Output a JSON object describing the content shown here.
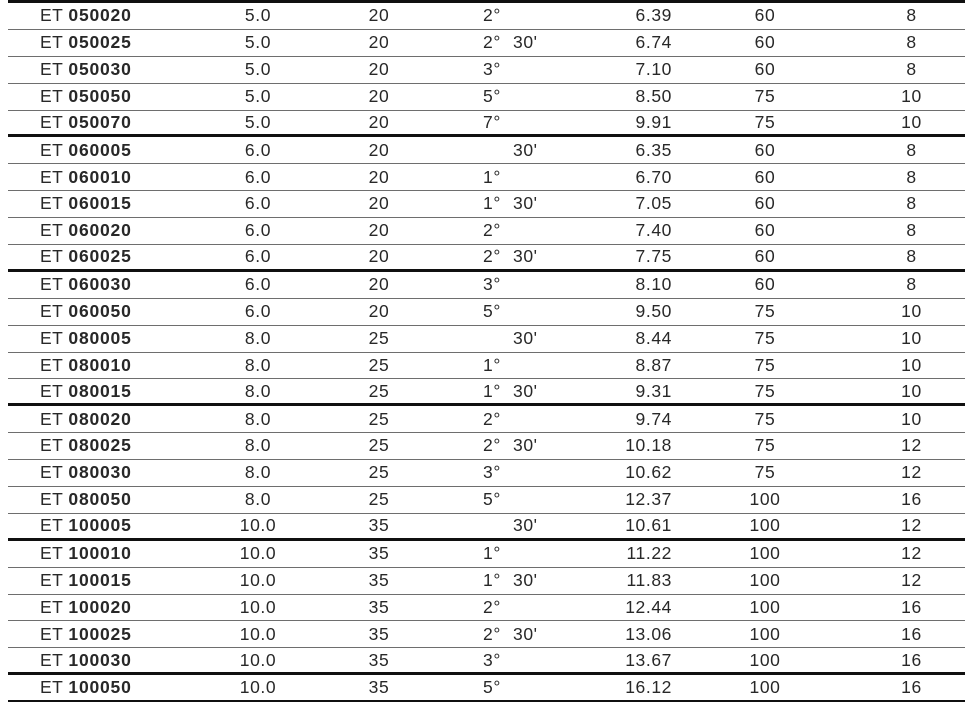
{
  "table": {
    "part_prefix": "ET",
    "rows": [
      {
        "code": "050020",
        "c2": "5.0",
        "c3": "20",
        "deg": "2°",
        "min": "",
        "c5": "6.39",
        "c6": "60",
        "c7": "8",
        "group_end": false
      },
      {
        "code": "050025",
        "c2": "5.0",
        "c3": "20",
        "deg": "2°",
        "min": "30'",
        "c5": "6.74",
        "c6": "60",
        "c7": "8",
        "group_end": false
      },
      {
        "code": "050030",
        "c2": "5.0",
        "c3": "20",
        "deg": "3°",
        "min": "",
        "c5": "7.10",
        "c6": "60",
        "c7": "8",
        "group_end": false
      },
      {
        "code": "050050",
        "c2": "5.0",
        "c3": "20",
        "deg": "5°",
        "min": "",
        "c5": "8.50",
        "c6": "75",
        "c7": "10",
        "group_end": false
      },
      {
        "code": "050070",
        "c2": "5.0",
        "c3": "20",
        "deg": "7°",
        "min": "",
        "c5": "9.91",
        "c6": "75",
        "c7": "10",
        "group_end": true
      },
      {
        "code": "060005",
        "c2": "6.0",
        "c3": "20",
        "deg": "",
        "min": "30'",
        "c5": "6.35",
        "c6": "60",
        "c7": "8",
        "group_end": false
      },
      {
        "code": "060010",
        "c2": "6.0",
        "c3": "20",
        "deg": "1°",
        "min": "",
        "c5": "6.70",
        "c6": "60",
        "c7": "8",
        "group_end": false
      },
      {
        "code": "060015",
        "c2": "6.0",
        "c3": "20",
        "deg": "1°",
        "min": "30'",
        "c5": "7.05",
        "c6": "60",
        "c7": "8",
        "group_end": false
      },
      {
        "code": "060020",
        "c2": "6.0",
        "c3": "20",
        "deg": "2°",
        "min": "",
        "c5": "7.40",
        "c6": "60",
        "c7": "8",
        "group_end": false
      },
      {
        "code": "060025",
        "c2": "6.0",
        "c3": "20",
        "deg": "2°",
        "min": "30'",
        "c5": "7.75",
        "c6": "60",
        "c7": "8",
        "group_end": true
      },
      {
        "code": "060030",
        "c2": "6.0",
        "c3": "20",
        "deg": "3°",
        "min": "",
        "c5": "8.10",
        "c6": "60",
        "c7": "8",
        "group_end": false
      },
      {
        "code": "060050",
        "c2": "6.0",
        "c3": "20",
        "deg": "5°",
        "min": "",
        "c5": "9.50",
        "c6": "75",
        "c7": "10",
        "group_end": false
      },
      {
        "code": "080005",
        "c2": "8.0",
        "c3": "25",
        "deg": "",
        "min": "30'",
        "c5": "8.44",
        "c6": "75",
        "c7": "10",
        "group_end": false
      },
      {
        "code": "080010",
        "c2": "8.0",
        "c3": "25",
        "deg": "1°",
        "min": "",
        "c5": "8.87",
        "c6": "75",
        "c7": "10",
        "group_end": false
      },
      {
        "code": "080015",
        "c2": "8.0",
        "c3": "25",
        "deg": "1°",
        "min": "30'",
        "c5": "9.31",
        "c6": "75",
        "c7": "10",
        "group_end": true
      },
      {
        "code": "080020",
        "c2": "8.0",
        "c3": "25",
        "deg": "2°",
        "min": "",
        "c5": "9.74",
        "c6": "75",
        "c7": "10",
        "group_end": false
      },
      {
        "code": "080025",
        "c2": "8.0",
        "c3": "25",
        "deg": "2°",
        "min": "30'",
        "c5": "10.18",
        "c6": "75",
        "c7": "12",
        "group_end": false
      },
      {
        "code": "080030",
        "c2": "8.0",
        "c3": "25",
        "deg": "3°",
        "min": "",
        "c5": "10.62",
        "c6": "75",
        "c7": "12",
        "group_end": false
      },
      {
        "code": "080050",
        "c2": "8.0",
        "c3": "25",
        "deg": "5°",
        "min": "",
        "c5": "12.37",
        "c6": "100",
        "c7": "16",
        "group_end": false
      },
      {
        "code": "100005",
        "c2": "10.0",
        "c3": "35",
        "deg": "",
        "min": "30'",
        "c5": "10.61",
        "c6": "100",
        "c7": "12",
        "group_end": true
      },
      {
        "code": "100010",
        "c2": "10.0",
        "c3": "35",
        "deg": "1°",
        "min": "",
        "c5": "11.22",
        "c6": "100",
        "c7": "12",
        "group_end": false
      },
      {
        "code": "100015",
        "c2": "10.0",
        "c3": "35",
        "deg": "1°",
        "min": "30'",
        "c5": "11.83",
        "c6": "100",
        "c7": "12",
        "group_end": false
      },
      {
        "code": "100020",
        "c2": "10.0",
        "c3": "35",
        "deg": "2°",
        "min": "",
        "c5": "12.44",
        "c6": "100",
        "c7": "16",
        "group_end": false
      },
      {
        "code": "100025",
        "c2": "10.0",
        "c3": "35",
        "deg": "2°",
        "min": "30'",
        "c5": "13.06",
        "c6": "100",
        "c7": "16",
        "group_end": false
      },
      {
        "code": "100030",
        "c2": "10.0",
        "c3": "35",
        "deg": "3°",
        "min": "",
        "c5": "13.67",
        "c6": "100",
        "c7": "16",
        "group_end": true
      },
      {
        "code": "100050",
        "c2": "10.0",
        "c3": "35",
        "deg": "5°",
        "min": "",
        "c5": "16.12",
        "c6": "100",
        "c7": "16",
        "group_end": false
      }
    ]
  }
}
